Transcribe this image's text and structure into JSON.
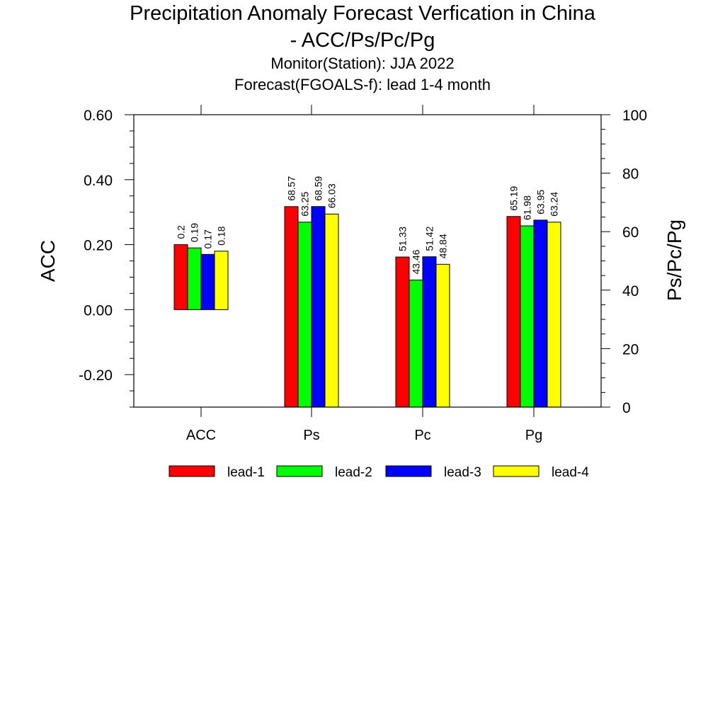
{
  "chart_data": {
    "type": "bar",
    "title": "Precipitation Anomaly Forecast Verfication in China",
    "title_line2": "- ACC/Ps/Pc/Pg",
    "subtitle1": "Monitor(Station): JJA 2022",
    "subtitle2": "Forecast(FGOALS-f): lead 1-4 month",
    "categories": [
      "ACC",
      "Ps",
      "Pc",
      "Pg"
    ],
    "ylabel_left": "ACC",
    "ylabel_right": "Ps/Pc/Pg",
    "ylim_left": [
      -0.3,
      0.6
    ],
    "ylim_right": [
      0,
      100
    ],
    "left_ticks": [
      {
        "value": 0.6,
        "label": "0.60"
      },
      {
        "value": 0.4,
        "label": "0.40"
      },
      {
        "value": 0.2,
        "label": "0.20"
      },
      {
        "value": 0.0,
        "label": "0.00"
      },
      {
        "value": -0.2,
        "label": "-0.20"
      }
    ],
    "right_ticks": [
      {
        "value": 100,
        "label": "100"
      },
      {
        "value": 80,
        "label": "80"
      },
      {
        "value": 60,
        "label": "60"
      },
      {
        "value": 40,
        "label": "40"
      },
      {
        "value": 20,
        "label": "20"
      },
      {
        "value": 0,
        "label": "0"
      }
    ],
    "series": [
      {
        "name": "lead-1",
        "color": "#ff0000",
        "values": [
          0.2,
          68.57,
          51.33,
          65.19
        ],
        "labels": [
          "0.2",
          "68.57",
          "51.33",
          "65.19"
        ]
      },
      {
        "name": "lead-2",
        "color": "#00ff00",
        "values": [
          0.19,
          63.25,
          43.46,
          61.98
        ],
        "labels": [
          "0.19",
          "63.25",
          "43.46",
          "61.98"
        ]
      },
      {
        "name": "lead-3",
        "color": "#0000ff",
        "values": [
          0.17,
          68.59,
          51.42,
          63.95
        ],
        "labels": [
          "0.17",
          "68.59",
          "51.42",
          "63.95"
        ]
      },
      {
        "name": "lead-4",
        "color": "#ffff00",
        "values": [
          0.18,
          66.03,
          48.84,
          63.24
        ],
        "labels": [
          "0.18",
          "66.03",
          "48.84",
          "63.24"
        ]
      }
    ],
    "legend_placement": "bottom",
    "grid": false
  }
}
